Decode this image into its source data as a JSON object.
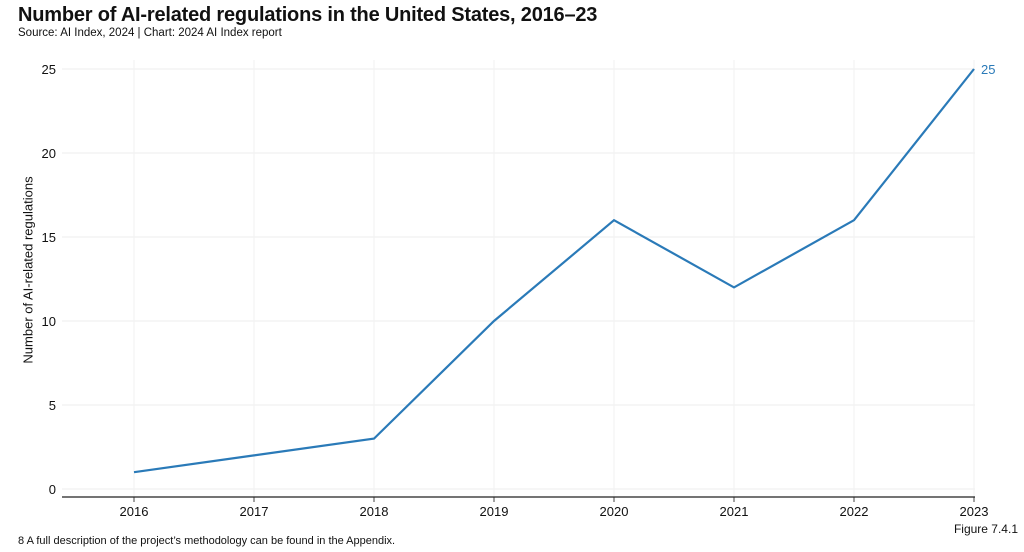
{
  "title": "Number of AI-related regulations in the United States, 2016–23",
  "subtitle": "Source: AI Index, 2024 | Chart: 2024 AI Index report",
  "footnote": "8 A full description of the project’s methodology can be found in the Appendix.",
  "figure_label": "Figure 7.4.1",
  "chart_data": {
    "type": "line",
    "title": "Number of AI-related regulations in the United States, 2016–23",
    "xlabel": "",
    "ylabel": "Number of AI-related regulations",
    "x": [
      "2016",
      "2017",
      "2018",
      "2019",
      "2020",
      "2021",
      "2022",
      "2023"
    ],
    "series": [
      {
        "values": [
          1,
          2,
          3,
          10,
          16,
          12,
          16,
          25
        ],
        "color": "#2a7ab8"
      }
    ],
    "ylim": [
      0,
      25
    ],
    "yticks": [
      0,
      5,
      10,
      15,
      20,
      25
    ],
    "end_label": "25",
    "grid": true
  }
}
